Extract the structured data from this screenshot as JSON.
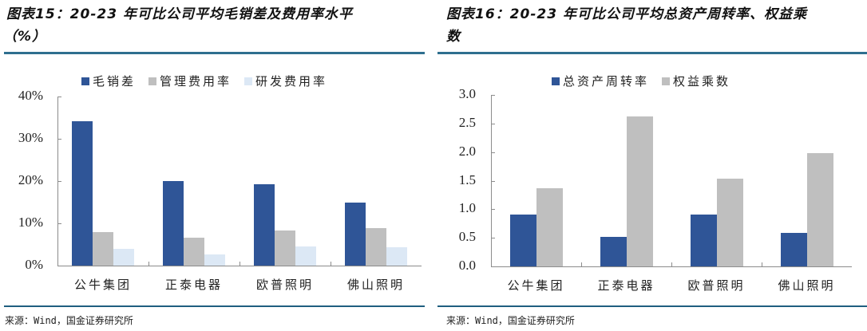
{
  "left": {
    "title_line1": "图表15：20-23 年可比公司平均毛销差及费用率水平",
    "title_line2": "（%）",
    "source": "来源：Wind，国金证券研究所"
  },
  "right": {
    "title_line1": "图表16：20-23 年可比公司平均总资产周转率、权益乘",
    "title_line2": "数",
    "source": "来源：Wind，国金证券研究所"
  },
  "colors": {
    "rule": "#2f6f8f",
    "series_blue": "#2f5597",
    "series_gray": "#bfbfbf",
    "series_light": "#dce8f5",
    "axis": "#8c8c8c"
  },
  "chart_data": [
    {
      "type": "bar",
      "title": "20-23年可比公司平均毛销差及费用率水平（%）",
      "categories": [
        "公牛集团",
        "正泰电器",
        "欧普照明",
        "佛山照明"
      ],
      "series": [
        {
          "name": "毛销差",
          "color": "#2f5597",
          "values": [
            34.2,
            20.0,
            19.2,
            15.0
          ]
        },
        {
          "name": "管理费用率",
          "color": "#bfbfbf",
          "values": [
            7.9,
            6.6,
            8.3,
            8.8
          ]
        },
        {
          "name": "研发费用率",
          "color": "#dce8f5",
          "values": [
            4.0,
            2.6,
            4.5,
            4.3
          ]
        }
      ],
      "yticks": [
        "0%",
        "10%",
        "20%",
        "30%",
        "40%"
      ],
      "ylim": [
        0,
        40
      ],
      "xlabel": "",
      "ylabel": "",
      "legend_position": "top",
      "grid": false
    },
    {
      "type": "bar",
      "title": "20-23年可比公司平均总资产周转率、权益乘数",
      "categories": [
        "公牛集团",
        "正泰电器",
        "欧普照明",
        "佛山照明"
      ],
      "series": [
        {
          "name": "总资产周转率",
          "color": "#2f5597",
          "values": [
            0.91,
            0.52,
            0.91,
            0.58
          ]
        },
        {
          "name": "权益乘数",
          "color": "#bfbfbf",
          "values": [
            1.37,
            2.63,
            1.54,
            1.98
          ]
        }
      ],
      "yticks": [
        "0.0",
        "0.5",
        "1.0",
        "1.5",
        "2.0",
        "2.5",
        "3.0"
      ],
      "ylim": [
        0,
        3.0
      ],
      "xlabel": "",
      "ylabel": "",
      "legend_position": "top",
      "grid": false
    }
  ]
}
